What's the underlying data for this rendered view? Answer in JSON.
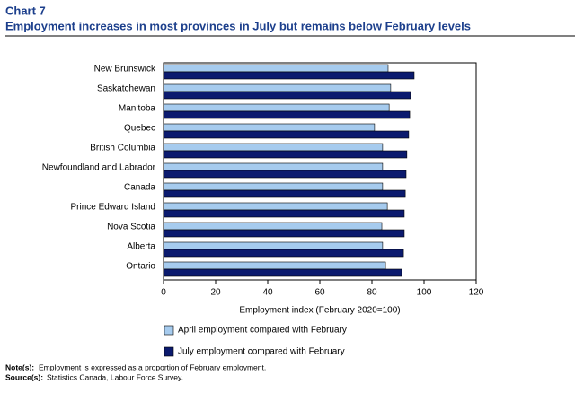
{
  "chart_data": {
    "type": "bar",
    "orientation": "horizontal",
    "title": "Chart 7",
    "subtitle": "Employment increases in most provinces in July but remains below February levels",
    "categories": [
      "New Brunswick",
      "Saskatchewan",
      "Manitoba",
      "Quebec",
      "British Columbia",
      "Newfoundland and Labrador",
      "Canada",
      "Prince Edward Island",
      "Nova Scotia",
      "Alberta",
      "Ontario"
    ],
    "series": [
      {
        "name": "April employment compared with February",
        "color": "#a6cbee",
        "values": [
          86.2,
          87.2,
          86.6,
          81,
          84.1,
          84.1,
          84.1,
          85.9,
          83.8,
          84.1,
          85.2
        ]
      },
      {
        "name": "July employment compared with February",
        "color": "#0b1a6e",
        "values": [
          96.2,
          94.8,
          94.5,
          94.1,
          93.4,
          93.1,
          92.8,
          92.4,
          92.4,
          92.1,
          91.4
        ]
      }
    ],
    "xlabel": "Employment index (February 2020=100)",
    "xlim": [
      0,
      120
    ],
    "xticks": [
      0,
      20,
      40,
      60,
      80,
      100,
      120
    ],
    "grid": false,
    "notes": {
      "label": "Note(s):",
      "text": "Employment is expressed as a proportion of February employment."
    },
    "source": {
      "label": "Source(s):",
      "text": "Statistics Canada, Labour Force Survey."
    }
  }
}
